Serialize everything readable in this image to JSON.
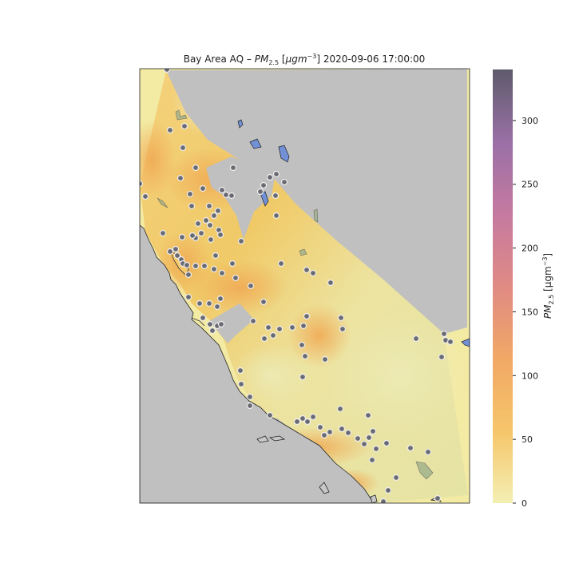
{
  "title": {
    "prefix": "Bay Area AQ – ",
    "var": "PM",
    "var_sub": "2.5",
    "unit_open": " [",
    "unit_mu": "μgm",
    "unit_exp": "−3",
    "unit_close": "]",
    "timestamp": " 2020-09-06 17:00:00"
  },
  "colorbar": {
    "label": "PM",
    "label_sub": "2.5",
    "label_unit": " [μgm",
    "label_exp": "−3",
    "label_close": "]",
    "min": 0,
    "max": 340,
    "ticks": [
      "0",
      "50",
      "100",
      "150",
      "200",
      "250",
      "300"
    ],
    "tick_values": [
      0,
      50,
      100,
      150,
      200,
      250,
      300
    ],
    "stops": [
      "#f3efb3",
      "#f6c56a",
      "#f1a865",
      "#e08a84",
      "#c57aa0",
      "#9a70a6",
      "#5e5b6c"
    ]
  },
  "map": {
    "ocean_color": "#c0c0c0",
    "land_color": "#f3eaa3",
    "water_color": "#7190d6",
    "station_color": "#6a6a72"
  }
}
